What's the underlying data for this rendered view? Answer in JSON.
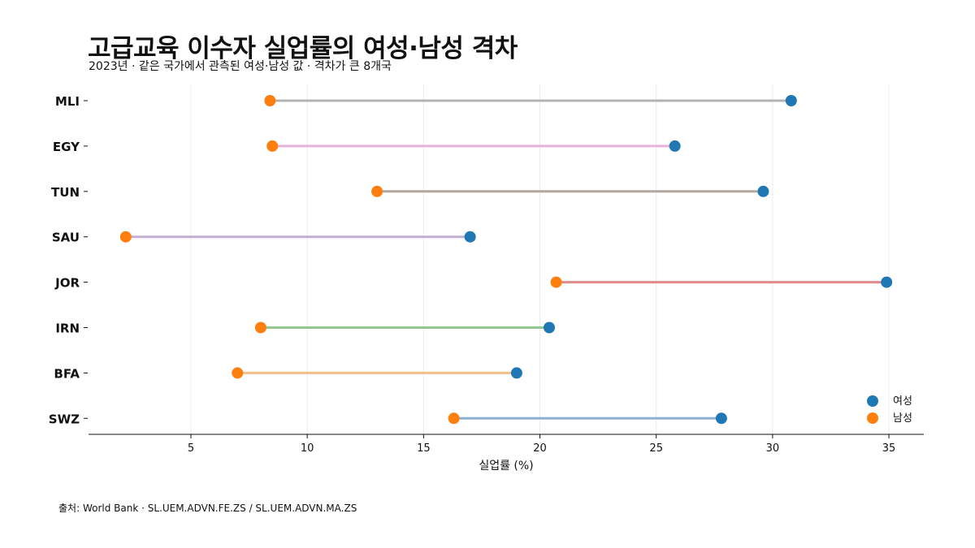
{
  "chart_data": {
    "type": "dumbbell",
    "title": "고급교육 이수자 실업률의 여성·남성 격차",
    "subtitle": "2023년 · 같은 국가에서 관측된 여성·남성 값 · 격차가 큰 8개국",
    "xlabel": "실업률 (%)",
    "ylabel": "",
    "xlim": [
      0.6,
      36.5
    ],
    "xticks": [
      5,
      10,
      15,
      20,
      25,
      30,
      35
    ],
    "grid": "vertical",
    "legend_position": "bottom-right",
    "categories": [
      "MLI",
      "EGY",
      "TUN",
      "SAU",
      "JOR",
      "IRN",
      "BFA",
      "SWZ"
    ],
    "series": [
      {
        "name": "여성",
        "color": "#1f77b4",
        "values": [
          30.8,
          25.8,
          29.6,
          17.0,
          34.9,
          20.4,
          19.0,
          27.8
        ]
      },
      {
        "name": "남성",
        "color": "#ff7f0e",
        "values": [
          8.4,
          8.5,
          13.0,
          2.2,
          20.7,
          8.0,
          7.0,
          16.3
        ]
      }
    ],
    "connector_colors": [
      "#b3b3b3",
      "#e7b1d8",
      "#b4a7a0",
      "#c2aed1",
      "#e38a8a",
      "#92c891",
      "#f5be88",
      "#8fb1d1"
    ]
  },
  "source": "출처: World Bank · SL.UEM.ADVN.FE.ZS / SL.UEM.ADVN.MA.ZS"
}
